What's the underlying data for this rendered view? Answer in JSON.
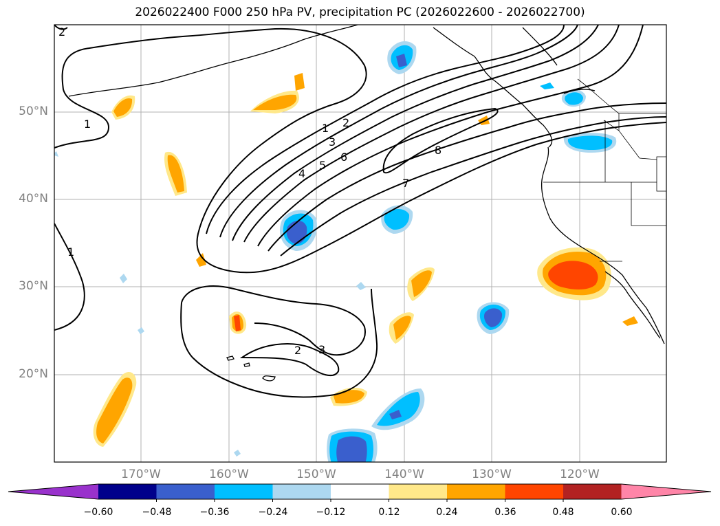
{
  "title": "2026022400 F000 250 hPa PV, precipitation PC (2026022600 - 2026022700)",
  "lat_labels": [
    "50°N",
    "40°N",
    "30°N",
    "20°N"
  ],
  "lon_labels": [
    "170°W",
    "160°W",
    "150°W",
    "140°W",
    "130°W",
    "120°W"
  ],
  "colorbar": {
    "labels": [
      "−0.60",
      "−0.48",
      "−0.36",
      "−0.24",
      "−0.12",
      "0.12",
      "0.24",
      "0.36",
      "0.48",
      "0.60"
    ],
    "colors": [
      "#9932cc",
      "#00008b",
      "#3a5fcd",
      "#00bfff",
      "#add8f0",
      "#ffffff",
      "#ffe88a",
      "#ffa500",
      "#ff4500",
      "#b22222",
      "#ff85a8"
    ]
  },
  "contour_labels": [
    "1",
    "1",
    "1",
    "2",
    "3",
    "4",
    "5",
    "6",
    "7",
    "8",
    "2",
    "3",
    "2"
  ]
}
